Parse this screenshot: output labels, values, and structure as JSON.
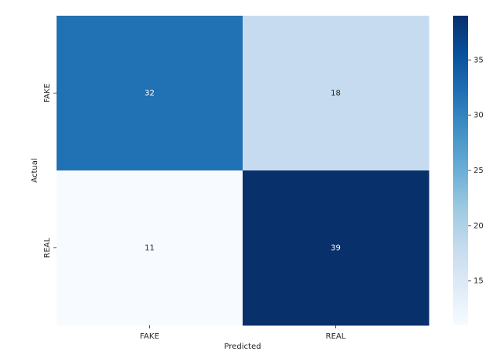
{
  "chart_data": {
    "type": "heatmap",
    "x_categories": [
      "FAKE",
      "REAL"
    ],
    "y_categories": [
      "FAKE",
      "REAL"
    ],
    "values": [
      [
        32,
        18
      ],
      [
        11,
        39
      ]
    ],
    "xlabel": "Predicted",
    "ylabel": "Actual",
    "colormap": "Blues",
    "zlim": [
      11,
      39
    ],
    "zticks": [
      15,
      20,
      25,
      30,
      35
    ]
  }
}
